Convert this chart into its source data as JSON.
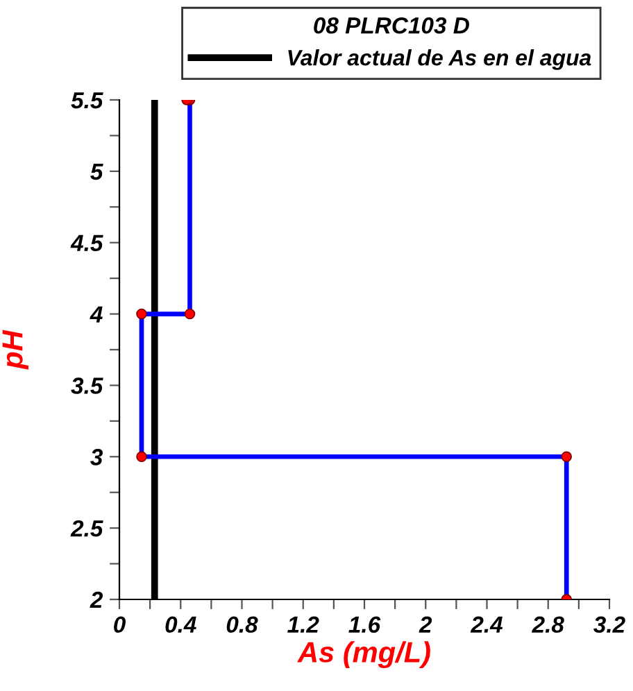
{
  "chart_data": {
    "type": "line",
    "xlabel": "As (mg/L)",
    "ylabel": "pH",
    "legend_title": "08 PLRC103 D",
    "series": [
      {
        "color": "#0000ff",
        "x": [
          2.92,
          2.92,
          0.145,
          0.145,
          0.46,
          0.46,
          0.44
        ],
        "values": [
          2,
          3,
          3,
          4,
          4,
          5.5,
          5.5
        ]
      }
    ],
    "ref_lines": [
      {
        "axis": "x",
        "value": 0.23,
        "label": "Valor actual de As en el agua",
        "color": "#000000"
      }
    ],
    "xlim": [
      0,
      3.2
    ],
    "ylim": [
      2,
      5.5
    ],
    "xticks": [
      0,
      {
        "value": 0.2,
        "label": null
      },
      0.4,
      {
        "value": 0.6,
        "label": null
      },
      0.8,
      {
        "value": 1.0,
        "label": null
      },
      1.2,
      {
        "value": 1.4,
        "label": null
      },
      1.6,
      {
        "value": 1.8,
        "label": null
      },
      2,
      {
        "value": 2.2,
        "label": null
      },
      2.4,
      {
        "value": 2.6,
        "label": null
      },
      2.8,
      {
        "value": 3.0,
        "label": null
      },
      3.2
    ],
    "yticks": [
      2,
      {
        "value": 2.25,
        "label": null
      },
      2.5,
      {
        "value": 2.75,
        "label": null
      },
      3,
      {
        "value": 3.25,
        "label": null
      },
      3.5,
      {
        "value": 3.75,
        "label": null
      },
      4,
      {
        "value": 4.25,
        "label": null
      },
      4.5,
      {
        "value": 4.75,
        "label": null
      },
      5,
      {
        "value": 5.25,
        "label": null
      },
      5.5
    ],
    "marker": "circle",
    "line_style": "solid",
    "grid": false,
    "legend": "top"
  }
}
